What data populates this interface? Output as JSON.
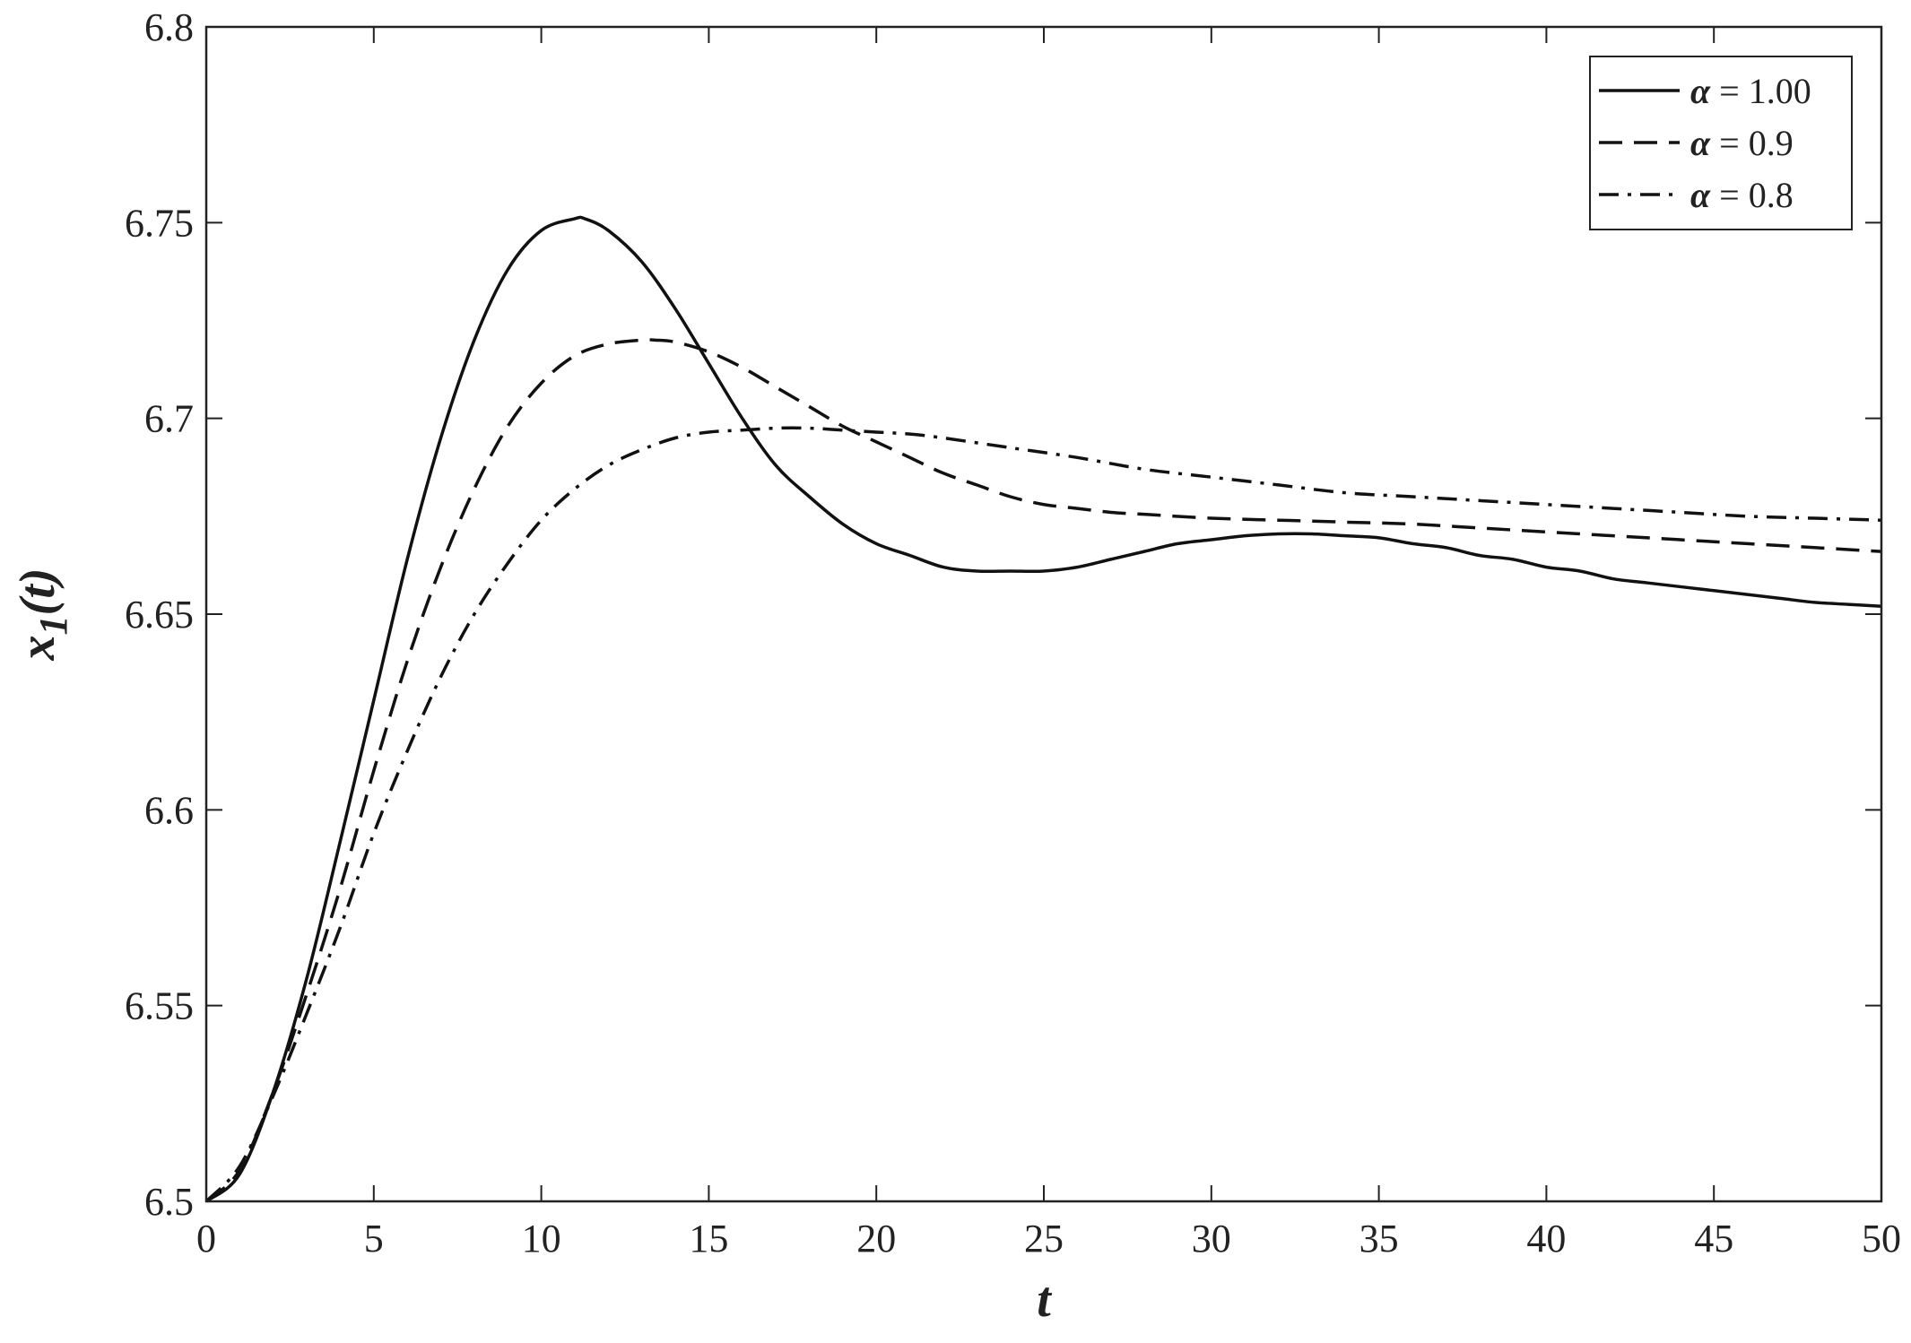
{
  "chart_data": {
    "type": "line",
    "xlabel": "t",
    "ylabel_base": "x",
    "ylabel_sub": "1",
    "ylabel_suffix": "(t)",
    "xlim": [
      0,
      50
    ],
    "ylim": [
      6.5,
      6.8
    ],
    "xticks": [
      0,
      5,
      10,
      15,
      20,
      25,
      30,
      35,
      40,
      45,
      50
    ],
    "xtick_labels": [
      "0",
      "5",
      "10",
      "15",
      "20",
      "25",
      "30",
      "35",
      "40",
      "45",
      "50"
    ],
    "yticks": [
      6.5,
      6.55,
      6.6,
      6.65,
      6.7,
      6.75,
      6.8
    ],
    "ytick_labels": [
      "6.5",
      "6.55",
      "6.6",
      "6.65",
      "6.7",
      "6.75",
      "6.8"
    ],
    "grid": false,
    "legend_position": "top-right",
    "series": [
      {
        "name": "1.00",
        "symbol": "α",
        "eq": " = ",
        "style": "solid",
        "x": [
          0,
          1,
          2,
          3,
          4,
          5,
          6,
          7,
          8,
          9,
          10,
          11,
          11.3,
          12,
          13,
          14,
          15,
          16,
          17,
          18,
          19,
          20,
          21,
          22,
          23,
          24,
          25,
          26,
          27,
          28,
          29,
          30,
          31,
          32,
          33,
          34,
          35,
          36,
          37,
          38,
          39,
          40,
          41,
          42,
          43,
          44,
          45,
          46,
          47,
          48,
          49,
          50
        ],
        "y": [
          6.5,
          6.507,
          6.528,
          6.557,
          6.592,
          6.628,
          6.664,
          6.695,
          6.72,
          6.738,
          6.748,
          6.751,
          6.751,
          6.748,
          6.74,
          6.728,
          6.714,
          6.7,
          6.688,
          6.68,
          6.673,
          6.668,
          6.665,
          6.662,
          6.661,
          6.661,
          6.661,
          6.662,
          6.664,
          6.666,
          6.668,
          6.669,
          6.67,
          6.6705,
          6.6705,
          6.67,
          6.6695,
          6.668,
          6.667,
          6.665,
          6.664,
          6.662,
          6.661,
          6.659,
          6.658,
          6.657,
          6.656,
          6.655,
          6.654,
          6.653,
          6.6525,
          6.652
        ]
      },
      {
        "name": "0.9",
        "symbol": "α",
        "eq": " = ",
        "style": "dashed",
        "x": [
          0,
          1,
          2,
          3,
          4,
          5,
          6,
          7,
          8,
          9,
          10,
          11,
          12,
          13,
          13.4,
          14,
          15,
          16,
          17,
          18,
          19,
          20,
          21,
          22,
          23,
          24,
          25,
          26,
          27,
          28,
          30,
          32,
          34,
          36,
          38,
          40,
          42,
          44,
          46,
          48,
          50
        ],
        "y": [
          6.5,
          6.508,
          6.528,
          6.553,
          6.58,
          6.61,
          6.638,
          6.662,
          6.682,
          6.698,
          6.709,
          6.716,
          6.719,
          6.72,
          6.72,
          6.7195,
          6.717,
          6.713,
          6.708,
          6.703,
          6.698,
          6.694,
          6.69,
          6.686,
          6.683,
          6.68,
          6.678,
          6.677,
          6.676,
          6.6755,
          6.6745,
          6.674,
          6.6735,
          6.673,
          6.672,
          6.671,
          6.67,
          6.669,
          6.668,
          6.667,
          6.666
        ]
      },
      {
        "name": "0.8",
        "symbol": "α",
        "eq": " = ",
        "style": "dashdot",
        "x": [
          0,
          1,
          2,
          3,
          4,
          5,
          6,
          7,
          8,
          9,
          10,
          11,
          12,
          13,
          14,
          15,
          16,
          17,
          18,
          19,
          20,
          21,
          22,
          24,
          26,
          28,
          30,
          32,
          34,
          36,
          38,
          40,
          42,
          44,
          46,
          48,
          50
        ],
        "y": [
          6.5,
          6.509,
          6.527,
          6.548,
          6.57,
          6.594,
          6.615,
          6.634,
          6.65,
          6.663,
          6.674,
          6.682,
          6.688,
          6.692,
          6.695,
          6.6965,
          6.697,
          6.6975,
          6.6975,
          6.697,
          6.6965,
          6.696,
          6.695,
          6.6925,
          6.69,
          6.687,
          6.685,
          6.683,
          6.681,
          6.68,
          6.679,
          6.678,
          6.677,
          6.676,
          6.675,
          6.6745,
          6.674
        ]
      }
    ]
  }
}
